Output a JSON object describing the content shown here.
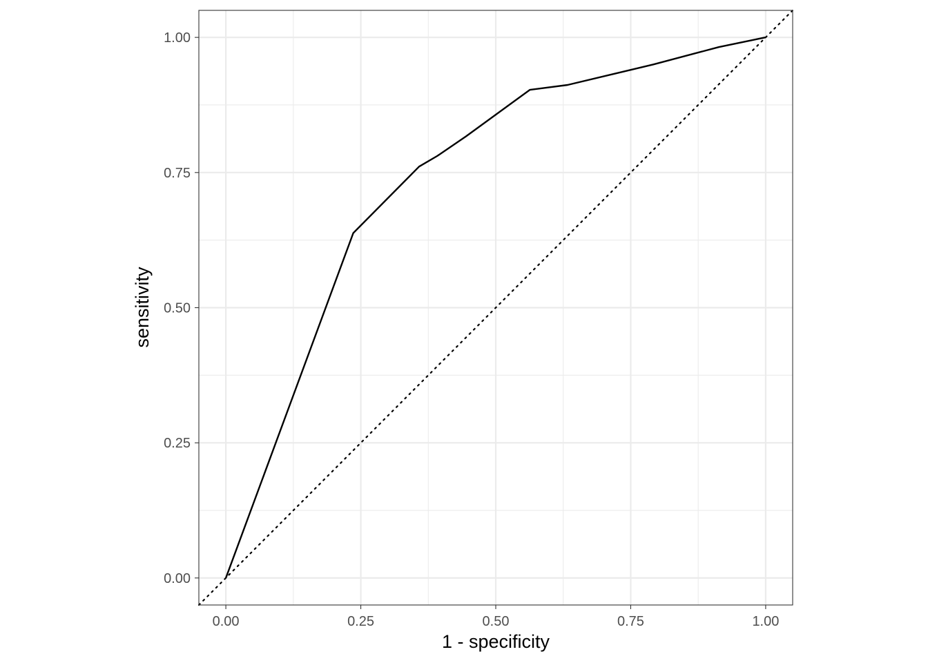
{
  "chart_data": {
    "type": "line",
    "xlabel": "1 - specificity",
    "ylabel": "sensitivity",
    "xlim": [
      -0.05,
      1.05
    ],
    "ylim": [
      -0.05,
      1.05
    ],
    "x_ticks": [
      0.0,
      0.25,
      0.5,
      0.75,
      1.0
    ],
    "x_tick_labels": [
      "0.00",
      "0.25",
      "0.50",
      "0.75",
      "1.00"
    ],
    "y_ticks": [
      0.0,
      0.25,
      0.5,
      0.75,
      1.0
    ],
    "y_tick_labels": [
      "0.00",
      "0.25",
      "0.50",
      "0.75",
      "1.00"
    ],
    "grid": true,
    "series": [
      {
        "style": "solid",
        "color": "#000000",
        "x": [
          0.0,
          0.236,
          0.358,
          0.392,
          0.445,
          0.563,
          0.633,
          0.792,
          0.913,
          1.0
        ],
        "y": [
          0.0,
          0.638,
          0.761,
          0.781,
          0.817,
          0.903,
          0.912,
          0.95,
          0.982,
          1.0
        ]
      }
    ],
    "reference_line": {
      "style": "dotted",
      "color": "#000000",
      "from": [
        -0.05,
        -0.05
      ],
      "to": [
        1.05,
        1.05
      ]
    }
  }
}
